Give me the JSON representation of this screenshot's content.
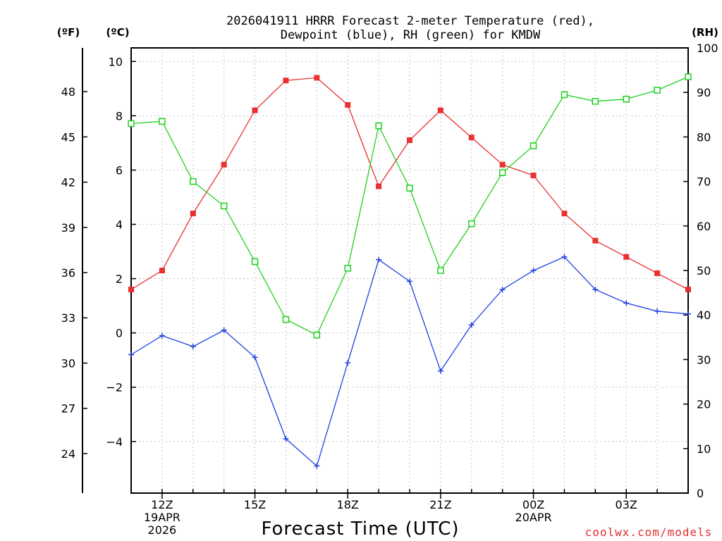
{
  "chart_data": {
    "type": "line",
    "title_lines": [
      "2026041911 HRRR Forecast 2-meter Temperature (red),",
      "Dewpoint (blue), RH (green) for KMDW"
    ],
    "xlabel": "Forecast Time (UTC)",
    "credit": "coolwx.com/models",
    "units": {
      "fahrenheit": "(ºF)",
      "celsius": "(ºC)",
      "rh": "(RH)"
    },
    "x_hours": [
      11,
      12,
      13,
      14,
      15,
      16,
      17,
      18,
      19,
      20,
      21,
      22,
      23,
      24,
      25,
      26,
      27,
      28,
      29
    ],
    "xlim": [
      11,
      29
    ],
    "x_ticks": [
      {
        "hour": 12,
        "lines": [
          "12Z",
          "19APR",
          "2026"
        ]
      },
      {
        "hour": 15,
        "lines": [
          "15Z"
        ]
      },
      {
        "hour": 18,
        "lines": [
          "18Z"
        ]
      },
      {
        "hour": 21,
        "lines": [
          "21Z"
        ]
      },
      {
        "hour": 24,
        "lines": [
          "00Z",
          "20APR"
        ]
      },
      {
        "hour": 27,
        "lines": [
          "03Z"
        ]
      }
    ],
    "celsius_axis": {
      "range": [
        -5.9,
        10.5
      ],
      "ticks": [
        -4,
        -2,
        0,
        2,
        4,
        6,
        8,
        10
      ]
    },
    "fahrenheit_ticks": [
      24,
      27,
      30,
      33,
      36,
      39,
      42,
      45,
      48
    ],
    "rh_axis": {
      "range": [
        0,
        100
      ],
      "ticks": [
        0,
        10,
        20,
        30,
        40,
        50,
        60,
        70,
        80,
        90,
        100
      ]
    },
    "series": [
      {
        "name": "Temperature",
        "axis": "celsius",
        "color": "#e83030",
        "marker": "filled-square",
        "values": [
          1.6,
          2.3,
          4.4,
          6.2,
          8.2,
          9.3,
          9.4,
          8.4,
          5.4,
          7.1,
          8.2,
          7.2,
          6.2,
          5.8,
          4.4,
          3.4,
          2.8,
          2.2,
          1.6
        ]
      },
      {
        "name": "Dewpoint",
        "axis": "celsius",
        "color": "#2040e0",
        "marker": "plus",
        "values": [
          -0.8,
          -0.1,
          -0.5,
          0.1,
          -0.9,
          -3.9,
          -4.9,
          -1.1,
          2.7,
          1.9,
          -1.4,
          0.3,
          1.6,
          2.3,
          2.8,
          1.6,
          1.1,
          0.8,
          0.7
        ]
      },
      {
        "name": "RH",
        "axis": "rh",
        "color": "#20d020",
        "marker": "open-square",
        "values": [
          83,
          83.5,
          70,
          64.5,
          52,
          39,
          35.5,
          50.5,
          82.5,
          68.5,
          50,
          60.5,
          72,
          78,
          89.5,
          88,
          88.5,
          90.5,
          93.5
        ]
      }
    ]
  }
}
